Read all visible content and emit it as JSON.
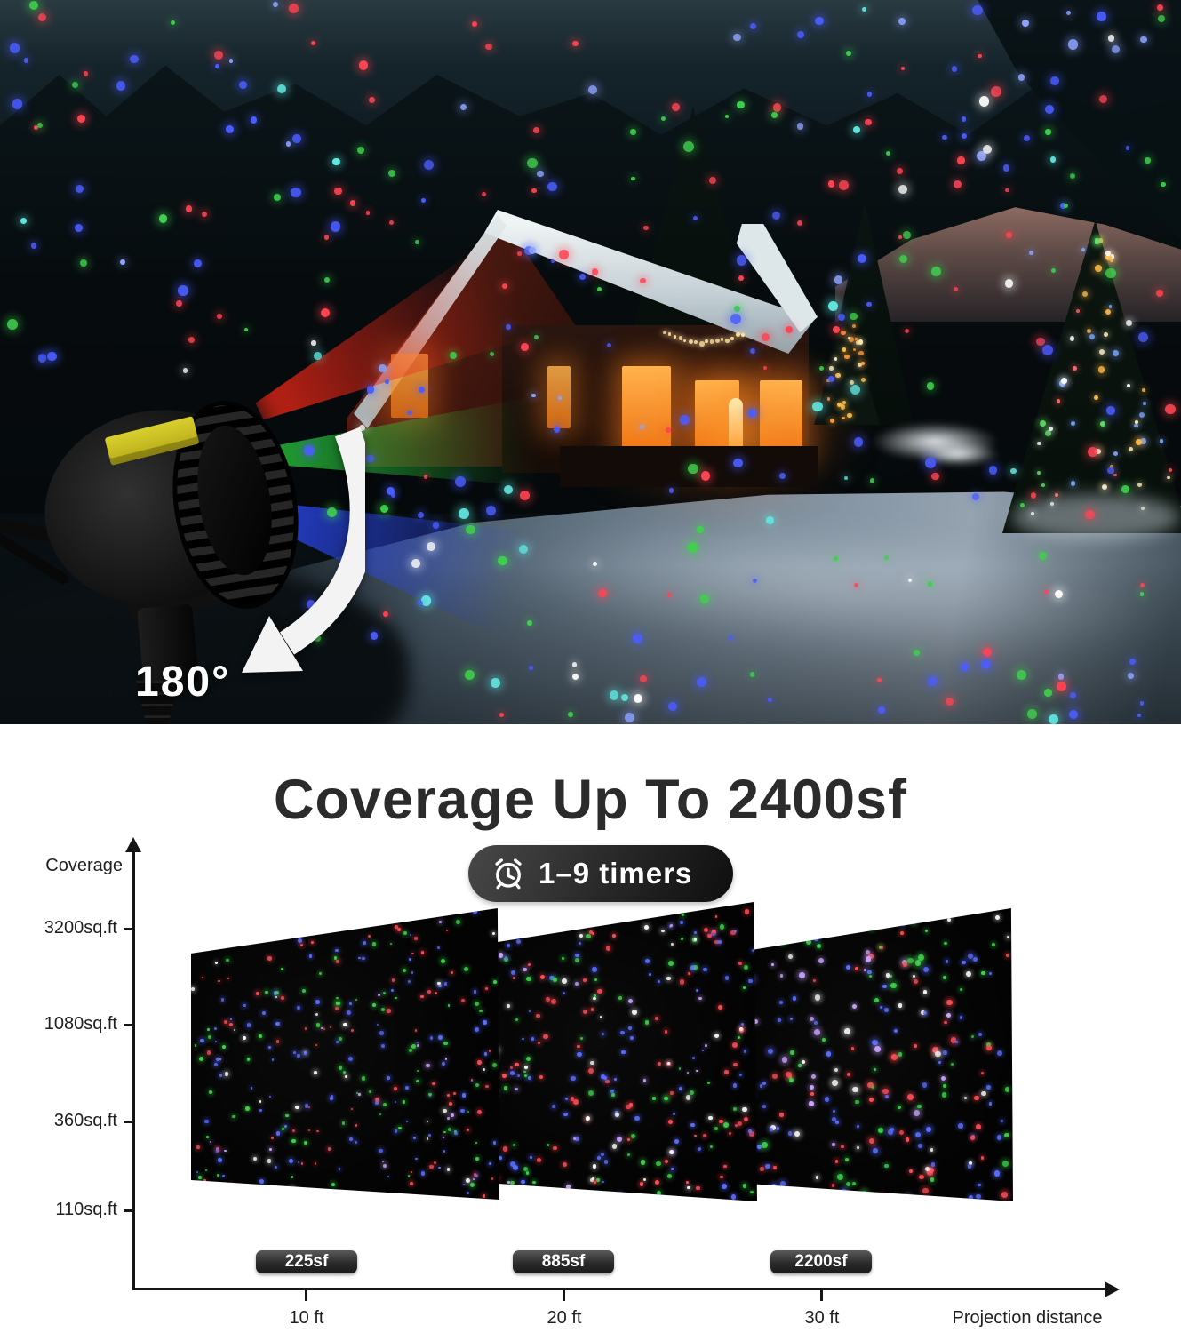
{
  "photo": {
    "rotation_label": "180°",
    "description": "night snow scene with laser dots, lit cabin, christmas trees and laser projector"
  },
  "section": {
    "title": "Coverage Up To 2400sf",
    "timer_badge": "1–9 timers",
    "timer_icon": "alarm-clock-icon"
  },
  "chart": {
    "y_axis_title": "Coverage",
    "x_axis_title": "Projection distance",
    "y_ticks": [
      "3200sq.ft",
      "1080sq.ft",
      "360sq.ft",
      "110sq.ft"
    ],
    "x_ticks": [
      "10 ft",
      "20 ft",
      "30 ft"
    ],
    "panel_badges": [
      "225sf",
      "885sf",
      "2200sf"
    ]
  },
  "chart_data": {
    "type": "scatter",
    "title": "Coverage Up To 2400sf",
    "xlabel": "Projection distance",
    "ylabel": "Coverage",
    "x_tick_labels": [
      "10 ft",
      "20 ft",
      "30 ft"
    ],
    "y_tick_labels": [
      "110sq.ft",
      "360sq.ft",
      "1080sq.ft",
      "3200sq.ft"
    ],
    "points": [
      {
        "projection_distance": "10 ft",
        "coverage": "225sf"
      },
      {
        "projection_distance": "20 ft",
        "coverage": "885sf"
      },
      {
        "projection_distance": "30 ft",
        "coverage": "2200sf"
      }
    ],
    "annotations": [
      "1–9 timers",
      "180° rotation"
    ],
    "legend": "none",
    "grid": false
  },
  "colors": {
    "laser_red": "#ff4453",
    "laser_green": "#3fd14e",
    "laser_blue": "#4b5dff",
    "title_text": "#2b2b2b",
    "badge_bg": "#2b2b2b",
    "white": "#ffffff"
  },
  "effects": {
    "photo_dot_count": 360,
    "panel_dot_counts": [
      300,
      260,
      225
    ],
    "photo_dot_colors": [
      [
        "#4b5dff",
        0.3
      ],
      [
        "#ff4453",
        0.26
      ],
      [
        "#3fd14e",
        0.24
      ],
      [
        "#8fa4ff",
        0.08
      ],
      [
        "#ffffff",
        0.07
      ],
      [
        "#62e8e0",
        0.05
      ]
    ],
    "panel_dot_colors": [
      [
        "#5b6eff",
        0.3
      ],
      [
        "#ff4d57",
        0.25
      ],
      [
        "#3fd14e",
        0.25
      ],
      [
        "#ffffff",
        0.12
      ],
      [
        "#caa4ff",
        0.08
      ]
    ],
    "amber_tree_lights": 26,
    "big_tree_lights": 55,
    "garland_lights": 16,
    "tree_light_colors": [
      "#fff3c4",
      "#ffb84a",
      "#66e06e",
      "#ff6a6a",
      "#7fa8ff",
      "#ffffff"
    ],
    "amber_colors": [
      "#ffe9b0",
      "#ffc24a",
      "#ff9a3c"
    ]
  }
}
